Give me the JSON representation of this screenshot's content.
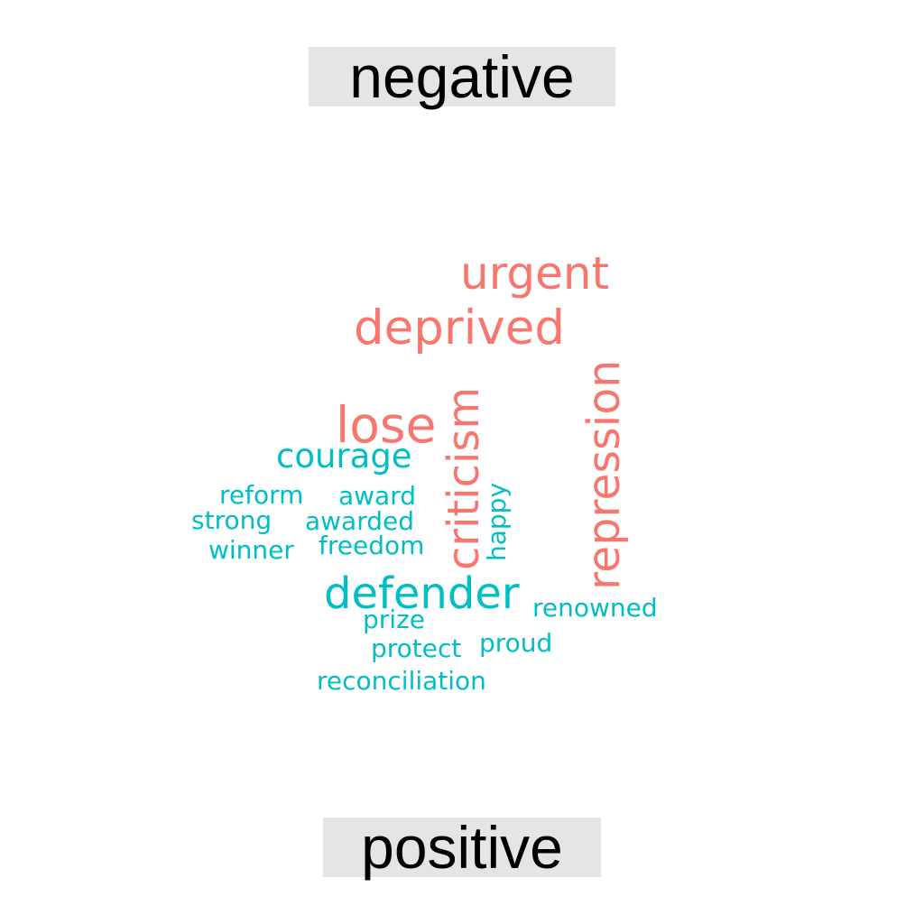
{
  "groups": {
    "negative": {
      "label": "negative",
      "color": "#f8766d"
    },
    "positive": {
      "label": "positive",
      "color": "#00bfc4"
    }
  },
  "words": {
    "urgent": "urgent",
    "deprived": "deprived",
    "lose": "lose",
    "criticism": "criticism",
    "repression": "repression",
    "courage": "courage",
    "reform": "reform",
    "award": "award",
    "strong": "strong",
    "awarded": "awarded",
    "winner": "winner",
    "freedom": "freedom",
    "happy": "happy",
    "defender": "defender",
    "renowned": "renowned",
    "prize": "prize",
    "protect": "protect",
    "proud": "proud",
    "reconciliation": "reconciliation"
  }
}
